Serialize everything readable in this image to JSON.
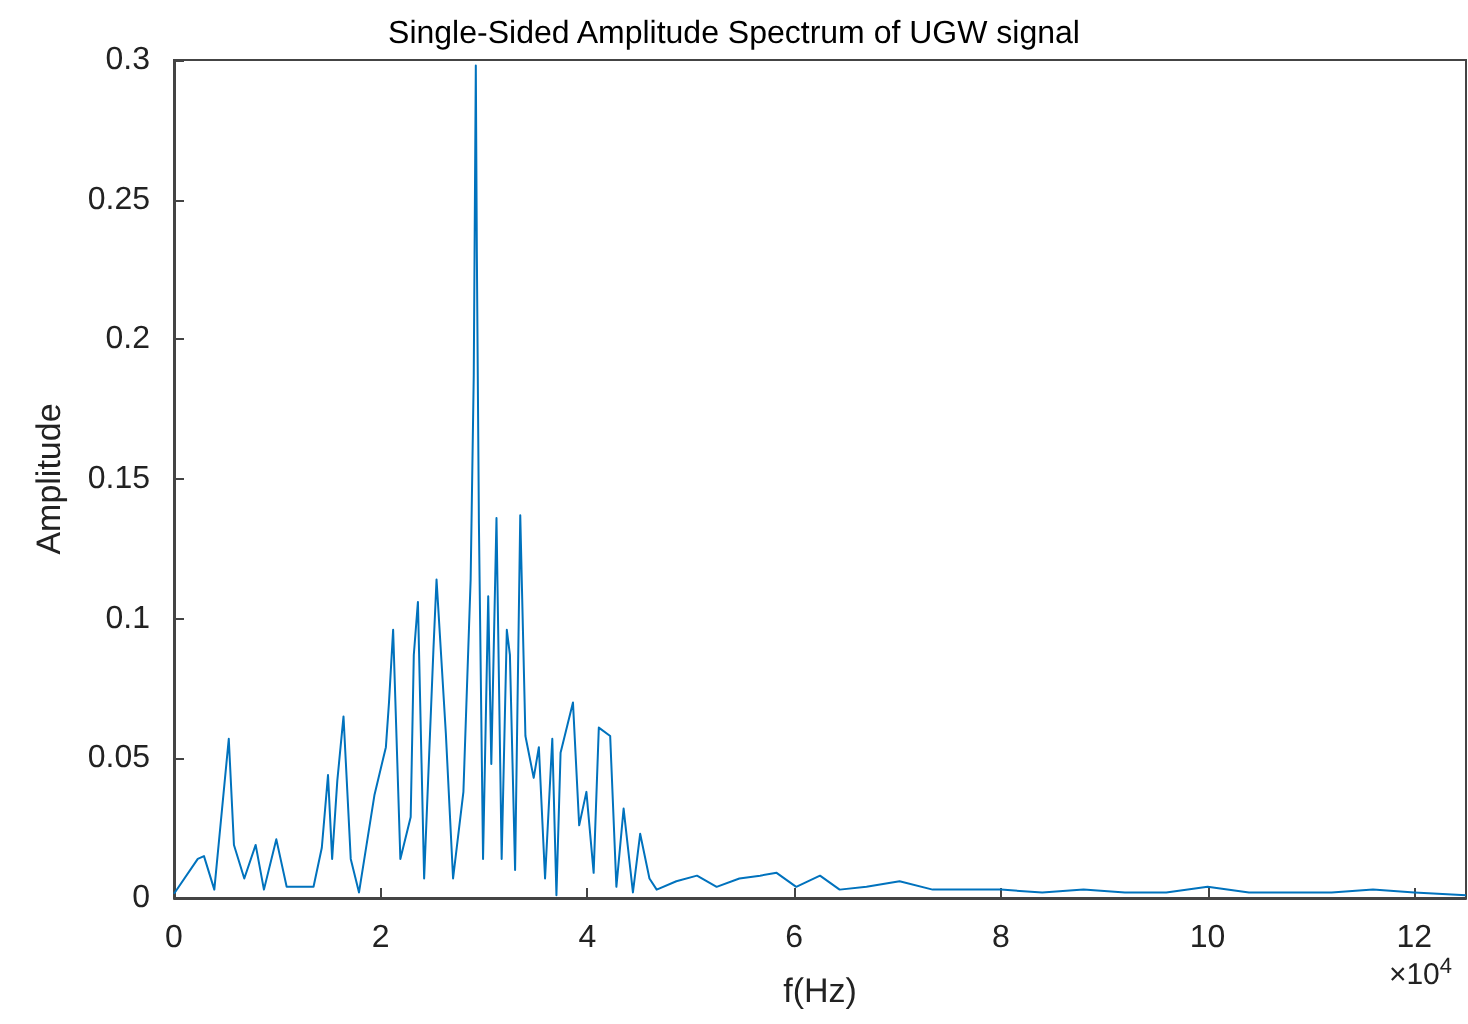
{
  "chart_data": {
    "type": "line",
    "title": "Single-Sided Amplitude Spectrum of UGW signal",
    "xlabel": "f(Hz)",
    "ylabel": "Amplitude",
    "annotations": [
      "×10$^{4}$"
    ],
    "x": [
      0,
      0.23,
      0.29,
      0.39,
      0.53,
      0.58,
      0.68,
      0.79,
      0.87,
      0.99,
      1.09,
      1.35,
      1.43,
      1.49,
      1.53,
      1.58,
      1.64,
      1.71,
      1.79,
      1.94,
      2.05,
      2.08,
      2.12,
      2.19,
      2.29,
      2.32,
      2.36,
      2.42,
      2.51,
      2.54,
      2.63,
      2.7,
      2.8,
      2.87,
      2.9,
      2.92,
      2.93,
      2.95,
      2.99,
      3.04,
      3.07,
      3.12,
      3.17,
      3.22,
      3.25,
      3.3,
      3.35,
      3.4,
      3.48,
      3.53,
      3.59,
      3.66,
      3.7,
      3.74,
      3.86,
      3.92,
      3.99,
      4.06,
      4.11,
      4.22,
      4.28,
      4.35,
      4.44,
      4.51,
      4.6,
      4.67,
      4.86,
      5.06,
      5.25,
      5.47,
      5.67,
      5.83,
      6.02,
      6.25,
      6.44,
      6.7,
      7.02,
      7.34,
      7.73,
      8,
      8.4,
      8.8,
      9.2,
      9.6,
      10,
      10.4,
      10.8,
      11.2,
      11.6,
      12,
      12.5
    ],
    "series": [
      {
        "color": "#0072bd",
        "values": [
          0.0015,
          0.014,
          0.015,
          0.003,
          0.057,
          0.019,
          0.007,
          0.019,
          0.003,
          0.021,
          0.004,
          0.004,
          0.018,
          0.044,
          0.014,
          0.042,
          0.065,
          0.014,
          0.002,
          0.037,
          0.054,
          0.07,
          0.096,
          0.014,
          0.029,
          0.087,
          0.106,
          0.007,
          0.089,
          0.114,
          0.059,
          0.007,
          0.038,
          0.114,
          0.187,
          0.298,
          0.231,
          0.134,
          0.014,
          0.108,
          0.048,
          0.136,
          0.014,
          0.096,
          0.087,
          0.01,
          0.137,
          0.058,
          0.043,
          0.054,
          0.007,
          0.057,
          0.001,
          0.052,
          0.07,
          0.026,
          0.038,
          0.009,
          0.061,
          0.058,
          0.004,
          0.032,
          0.002,
          0.023,
          0.007,
          0.003,
          0.006,
          0.008,
          0.004,
          0.007,
          0.008,
          0.009,
          0.004,
          0.008,
          0.003,
          0.004,
          0.006,
          0.003,
          0.003,
          0.003,
          0.002,
          0.003,
          0.002,
          0.002,
          0.004,
          0.002,
          0.002,
          0.002,
          0.003,
          0.002,
          0.001
        ]
      }
    ],
    "xlim": [
      0,
      12.5
    ],
    "xticks": [
      0,
      2,
      4,
      6,
      8,
      10,
      12
    ],
    "ylim": [
      0,
      0.3
    ],
    "yticks": [
      0,
      0.05,
      0.1,
      0.15,
      0.2,
      0.25,
      0.3
    ],
    "marker": "none",
    "line_style": "solid"
  }
}
